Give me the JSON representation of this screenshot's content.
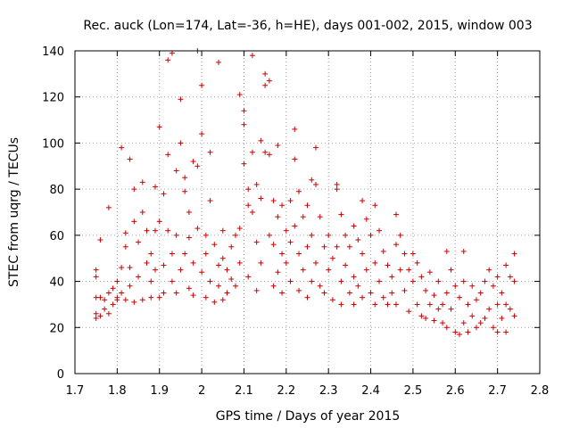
{
  "chart_data": {
    "type": "scatter",
    "title": "Rec. auck (Lon=174, Lat=-36, h=HE), days 001-002, 2015, window 003",
    "xlabel": "GPS time / Days of year 2015",
    "ylabel": "STEC from uqrg / TECUs",
    "xlim": [
      1.7,
      2.8
    ],
    "ylim": [
      0,
      140
    ],
    "xticks": [
      1.7,
      1.8,
      1.9,
      2.0,
      2.1,
      2.2,
      2.3,
      2.4,
      2.5,
      2.6,
      2.7,
      2.8
    ],
    "xtick_labels": [
      "1.7",
      "1.8",
      "1.9",
      "2",
      "2.1",
      "2.2",
      "2.3",
      "2.4",
      "2.5",
      "2.6",
      "2.7",
      "2.8"
    ],
    "yticks": [
      0,
      20,
      40,
      60,
      80,
      100,
      120,
      140
    ],
    "ytick_labels": [
      "0",
      "20",
      "40",
      "60",
      "80",
      "100",
      "120",
      "140"
    ],
    "grid": true,
    "marker": "plus",
    "point_color": "#cc0000",
    "series": [
      {
        "points": [
          [
            1.75,
            24
          ],
          [
            1.75,
            26
          ],
          [
            1.75,
            33
          ],
          [
            1.75,
            42
          ],
          [
            1.75,
            45
          ],
          [
            1.76,
            25
          ],
          [
            1.76,
            33
          ],
          [
            1.76,
            58
          ],
          [
            1.77,
            28
          ],
          [
            1.77,
            32
          ],
          [
            1.78,
            35
          ],
          [
            1.78,
            72
          ],
          [
            1.78,
            26
          ],
          [
            1.79,
            30
          ],
          [
            1.79,
            37
          ],
          [
            1.8,
            33
          ],
          [
            1.8,
            40
          ],
          [
            1.8,
            32
          ],
          [
            1.81,
            98
          ],
          [
            1.81,
            35
          ],
          [
            1.81,
            46
          ],
          [
            1.82,
            32
          ],
          [
            1.82,
            55
          ],
          [
            1.82,
            61
          ],
          [
            1.83,
            93
          ],
          [
            1.83,
            46
          ],
          [
            1.83,
            38
          ],
          [
            1.84,
            31
          ],
          [
            1.84,
            66
          ],
          [
            1.84,
            80
          ],
          [
            1.85,
            42
          ],
          [
            1.85,
            57
          ],
          [
            1.86,
            83
          ],
          [
            1.86,
            70
          ],
          [
            1.86,
            32
          ],
          [
            1.87,
            48
          ],
          [
            1.87,
            62
          ],
          [
            1.88,
            33
          ],
          [
            1.88,
            40
          ],
          [
            1.88,
            52
          ],
          [
            1.89,
            81
          ],
          [
            1.89,
            62
          ],
          [
            1.89,
            45
          ],
          [
            1.9,
            107
          ],
          [
            1.9,
            33
          ],
          [
            1.9,
            66
          ],
          [
            1.91,
            78
          ],
          [
            1.91,
            47
          ],
          [
            1.91,
            35
          ],
          [
            1.92,
            136
          ],
          [
            1.92,
            95
          ],
          [
            1.92,
            62
          ],
          [
            1.93,
            139
          ],
          [
            1.93,
            52
          ],
          [
            1.93,
            40
          ],
          [
            1.94,
            88
          ],
          [
            1.94,
            60
          ],
          [
            1.94,
            35
          ],
          [
            1.95,
            119
          ],
          [
            1.95,
            100
          ],
          [
            1.95,
            45
          ],
          [
            1.96,
            85
          ],
          [
            1.96,
            79
          ],
          [
            1.96,
            52
          ],
          [
            1.97,
            70
          ],
          [
            1.97,
            59
          ],
          [
            1.97,
            37
          ],
          [
            1.98,
            92
          ],
          [
            1.98,
            48
          ],
          [
            1.98,
            34
          ],
          [
            1.99,
            140
          ],
          [
            1.99,
            90
          ],
          [
            1.99,
            63
          ],
          [
            2.0,
            125
          ],
          [
            2.0,
            104
          ],
          [
            2.0,
            44
          ],
          [
            2.01,
            60
          ],
          [
            2.01,
            52
          ],
          [
            2.01,
            33
          ],
          [
            2.02,
            96
          ],
          [
            2.02,
            75
          ],
          [
            2.02,
            40
          ],
          [
            2.03,
            31
          ],
          [
            2.03,
            56
          ],
          [
            2.04,
            135
          ],
          [
            2.04,
            47
          ],
          [
            2.04,
            38
          ],
          [
            2.05,
            62
          ],
          [
            2.05,
            50
          ],
          [
            2.05,
            32
          ],
          [
            2.06,
            35
          ],
          [
            2.06,
            45
          ],
          [
            2.07,
            55
          ],
          [
            2.07,
            41
          ],
          [
            2.08,
            60
          ],
          [
            2.08,
            38
          ],
          [
            2.09,
            121
          ],
          [
            2.09,
            48
          ],
          [
            2.09,
            63
          ],
          [
            2.1,
            114
          ],
          [
            2.1,
            108
          ],
          [
            2.1,
            91
          ],
          [
            2.11,
            80
          ],
          [
            2.11,
            73
          ],
          [
            2.11,
            42
          ],
          [
            2.12,
            138
          ],
          [
            2.12,
            96
          ],
          [
            2.12,
            70
          ],
          [
            2.13,
            82
          ],
          [
            2.13,
            57
          ],
          [
            2.13,
            36
          ],
          [
            2.14,
            101
          ],
          [
            2.14,
            76
          ],
          [
            2.14,
            48
          ],
          [
            2.15,
            130
          ],
          [
            2.15,
            125
          ],
          [
            2.15,
            96
          ],
          [
            2.16,
            127
          ],
          [
            2.16,
            95
          ],
          [
            2.16,
            60
          ],
          [
            2.17,
            75
          ],
          [
            2.17,
            56
          ],
          [
            2.17,
            38
          ],
          [
            2.18,
            99
          ],
          [
            2.18,
            68
          ],
          [
            2.18,
            44
          ],
          [
            2.19,
            73
          ],
          [
            2.19,
            52
          ],
          [
            2.19,
            35
          ],
          [
            2.2,
            62
          ],
          [
            2.2,
            48
          ],
          [
            2.21,
            75
          ],
          [
            2.21,
            57
          ],
          [
            2.21,
            40
          ],
          [
            2.22,
            106
          ],
          [
            2.22,
            93
          ],
          [
            2.22,
            64
          ],
          [
            2.23,
            79
          ],
          [
            2.23,
            52
          ],
          [
            2.23,
            36
          ],
          [
            2.24,
            68
          ],
          [
            2.24,
            45
          ],
          [
            2.25,
            73
          ],
          [
            2.25,
            55
          ],
          [
            2.25,
            33
          ],
          [
            2.26,
            84
          ],
          [
            2.26,
            60
          ],
          [
            2.26,
            40
          ],
          [
            2.27,
            98
          ],
          [
            2.27,
            82
          ],
          [
            2.27,
            48
          ],
          [
            2.28,
            68
          ],
          [
            2.28,
            38
          ],
          [
            2.29,
            55
          ],
          [
            2.29,
            35
          ],
          [
            2.3,
            60
          ],
          [
            2.3,
            45
          ],
          [
            2.31,
            50
          ],
          [
            2.31,
            32
          ],
          [
            2.32,
            82
          ],
          [
            2.32,
            80
          ],
          [
            2.32,
            55
          ],
          [
            2.33,
            69
          ],
          [
            2.33,
            40
          ],
          [
            2.33,
            30
          ],
          [
            2.34,
            60
          ],
          [
            2.34,
            47
          ],
          [
            2.35,
            55
          ],
          [
            2.35,
            35
          ],
          [
            2.36,
            64
          ],
          [
            2.36,
            42
          ],
          [
            2.36,
            30
          ],
          [
            2.37,
            58
          ],
          [
            2.37,
            38
          ],
          [
            2.38,
            75
          ],
          [
            2.38,
            52
          ],
          [
            2.38,
            33
          ],
          [
            2.39,
            67
          ],
          [
            2.39,
            45
          ],
          [
            2.4,
            60
          ],
          [
            2.4,
            35
          ],
          [
            2.41,
            73
          ],
          [
            2.41,
            48
          ],
          [
            2.41,
            30
          ],
          [
            2.42,
            62
          ],
          [
            2.42,
            40
          ],
          [
            2.43,
            53
          ],
          [
            2.43,
            33
          ],
          [
            2.44,
            47
          ],
          [
            2.44,
            30
          ],
          [
            2.45,
            42
          ],
          [
            2.45,
            35
          ],
          [
            2.46,
            69
          ],
          [
            2.46,
            56
          ],
          [
            2.46,
            30
          ],
          [
            2.47,
            60
          ],
          [
            2.47,
            45
          ],
          [
            2.48,
            52
          ],
          [
            2.48,
            36
          ],
          [
            2.49,
            45
          ],
          [
            2.49,
            27
          ],
          [
            2.5,
            52
          ],
          [
            2.5,
            40
          ],
          [
            2.51,
            48
          ],
          [
            2.51,
            30
          ],
          [
            2.52,
            42
          ],
          [
            2.52,
            25
          ],
          [
            2.53,
            36
          ],
          [
            2.53,
            24
          ],
          [
            2.54,
            44
          ],
          [
            2.54,
            30
          ],
          [
            2.55,
            34
          ],
          [
            2.55,
            23
          ],
          [
            2.56,
            40
          ],
          [
            2.56,
            28
          ],
          [
            2.57,
            30
          ],
          [
            2.57,
            22
          ],
          [
            2.58,
            53
          ],
          [
            2.58,
            35
          ],
          [
            2.58,
            20
          ],
          [
            2.59,
            45
          ],
          [
            2.59,
            28
          ],
          [
            2.6,
            38
          ],
          [
            2.6,
            18
          ],
          [
            2.61,
            33
          ],
          [
            2.61,
            17
          ],
          [
            2.62,
            53
          ],
          [
            2.62,
            40
          ],
          [
            2.62,
            22
          ],
          [
            2.63,
            30
          ],
          [
            2.63,
            18
          ],
          [
            2.64,
            38
          ],
          [
            2.64,
            25
          ],
          [
            2.65,
            32
          ],
          [
            2.65,
            20
          ],
          [
            2.66,
            35
          ],
          [
            2.66,
            22
          ],
          [
            2.67,
            40
          ],
          [
            2.67,
            24
          ],
          [
            2.68,
            45
          ],
          [
            2.68,
            28
          ],
          [
            2.69,
            38
          ],
          [
            2.69,
            20
          ],
          [
            2.7,
            42
          ],
          [
            2.7,
            30
          ],
          [
            2.7,
            18
          ],
          [
            2.71,
            35
          ],
          [
            2.71,
            24
          ],
          [
            2.72,
            47
          ],
          [
            2.72,
            30
          ],
          [
            2.72,
            18
          ],
          [
            2.73,
            42
          ],
          [
            2.73,
            28
          ],
          [
            2.74,
            52
          ],
          [
            2.74,
            40
          ],
          [
            2.74,
            25
          ]
        ]
      }
    ]
  }
}
